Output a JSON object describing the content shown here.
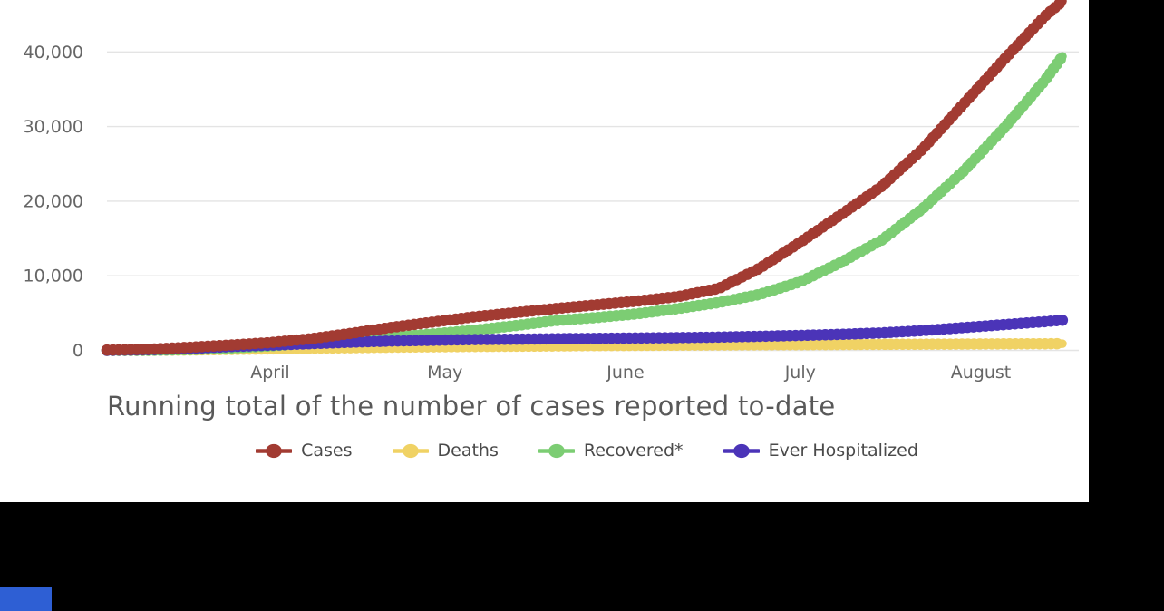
{
  "window": {
    "background_color": "#000000",
    "card_background_color": "#ffffff",
    "corner_accent_color": "#2e5fd4"
  },
  "chart_data": {
    "type": "line",
    "title": "Running total of the number of cases reported to-date",
    "style": "dotted cumulative lines (one dot per day)",
    "grid": "horizontal gridlines on",
    "legend_position": "bottom",
    "axis_text_color": "#666666",
    "gridline_color": "#e4e4e4",
    "x_axis": {
      "range_days": [
        0,
        164
      ],
      "tick_labels": [
        {
          "label": "April",
          "t": 28
        },
        {
          "label": "May",
          "t": 58
        },
        {
          "label": "June",
          "t": 89
        },
        {
          "label": "July",
          "t": 119
        },
        {
          "label": "August",
          "t": 150
        }
      ]
    },
    "y_axis": {
      "range": [
        0,
        47000
      ],
      "ticks": [
        {
          "v": 0,
          "label": "0"
        },
        {
          "v": 10000,
          "label": "10,000"
        },
        {
          "v": 20000,
          "label": "20,000"
        },
        {
          "v": 30000,
          "label": "30,000"
        },
        {
          "v": 40000,
          "label": "40,000"
        }
      ]
    },
    "series": [
      {
        "name": "Cases",
        "color": "#a23b32",
        "z": 4,
        "points": [
          [
            0,
            50
          ],
          [
            7,
            150
          ],
          [
            14,
            400
          ],
          [
            21,
            700
          ],
          [
            28,
            1050
          ],
          [
            35,
            1550
          ],
          [
            42,
            2300
          ],
          [
            49,
            3100
          ],
          [
            56,
            3800
          ],
          [
            63,
            4500
          ],
          [
            70,
            5050
          ],
          [
            77,
            5600
          ],
          [
            84,
            6100
          ],
          [
            91,
            6600
          ],
          [
            98,
            7200
          ],
          [
            105,
            8300
          ],
          [
            112,
            11000
          ],
          [
            119,
            14500
          ],
          [
            126,
            18200
          ],
          [
            133,
            22000
          ],
          [
            140,
            27000
          ],
          [
            147,
            33000
          ],
          [
            154,
            39000
          ],
          [
            161,
            44800
          ],
          [
            164,
            46800
          ]
        ]
      },
      {
        "name": "Deaths",
        "color": "#f0d264",
        "z": 1,
        "points": [
          [
            0,
            0
          ],
          [
            7,
            10
          ],
          [
            14,
            50
          ],
          [
            21,
            120
          ],
          [
            28,
            200
          ],
          [
            35,
            280
          ],
          [
            42,
            350
          ],
          [
            49,
            420
          ],
          [
            56,
            470
          ],
          [
            63,
            520
          ],
          [
            70,
            560
          ],
          [
            77,
            600
          ],
          [
            84,
            640
          ],
          [
            91,
            670
          ],
          [
            98,
            700
          ],
          [
            105,
            730
          ],
          [
            112,
            750
          ],
          [
            119,
            770
          ],
          [
            126,
            790
          ],
          [
            133,
            810
          ],
          [
            140,
            830
          ],
          [
            147,
            850
          ],
          [
            154,
            870
          ],
          [
            161,
            890
          ],
          [
            164,
            900
          ]
        ]
      },
      {
        "name": "Recovered*",
        "color": "#7ccd73",
        "z": 2,
        "points": [
          [
            0,
            0
          ],
          [
            7,
            0
          ],
          [
            14,
            100
          ],
          [
            21,
            300
          ],
          [
            28,
            600
          ],
          [
            35,
            1000
          ],
          [
            42,
            1400
          ],
          [
            49,
            1800
          ],
          [
            56,
            2200
          ],
          [
            63,
            2700
          ],
          [
            70,
            3300
          ],
          [
            77,
            4000
          ],
          [
            84,
            4400
          ],
          [
            91,
            4900
          ],
          [
            98,
            5600
          ],
          [
            105,
            6400
          ],
          [
            112,
            7500
          ],
          [
            119,
            9200
          ],
          [
            126,
            11800
          ],
          [
            133,
            14800
          ],
          [
            140,
            19000
          ],
          [
            147,
            24000
          ],
          [
            154,
            29800
          ],
          [
            161,
            36200
          ],
          [
            164,
            39400
          ]
        ]
      },
      {
        "name": "Ever Hospitalized",
        "color": "#4b34b8",
        "z": 3,
        "points": [
          [
            0,
            0
          ],
          [
            7,
            80
          ],
          [
            14,
            250
          ],
          [
            21,
            500
          ],
          [
            28,
            700
          ],
          [
            35,
            900
          ],
          [
            42,
            1100
          ],
          [
            49,
            1250
          ],
          [
            56,
            1350
          ],
          [
            63,
            1450
          ],
          [
            70,
            1500
          ],
          [
            77,
            1550
          ],
          [
            84,
            1600
          ],
          [
            91,
            1650
          ],
          [
            98,
            1700
          ],
          [
            105,
            1780
          ],
          [
            112,
            1880
          ],
          [
            119,
            2000
          ],
          [
            126,
            2150
          ],
          [
            133,
            2350
          ],
          [
            140,
            2650
          ],
          [
            147,
            3050
          ],
          [
            154,
            3450
          ],
          [
            161,
            3850
          ],
          [
            164,
            4050
          ]
        ]
      }
    ]
  }
}
